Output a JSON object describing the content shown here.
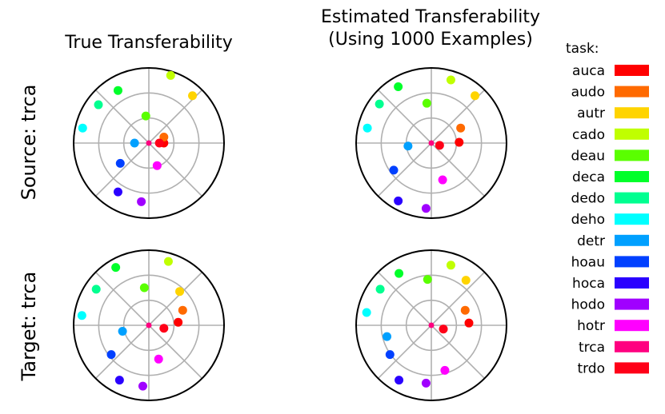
{
  "col_titles": {
    "left": "True Transferability",
    "right_line1": "Estimated Transferability",
    "right_line2": "(Using 1000 Examples)"
  },
  "row_labels": {
    "top": "Source: trca",
    "bottom": "Target: trca"
  },
  "legend": {
    "title": "task:",
    "items": [
      {
        "label": "auca",
        "color": "#ff0000"
      },
      {
        "label": "audo",
        "color": "#ff6a00"
      },
      {
        "label": "autr",
        "color": "#ffd400"
      },
      {
        "label": "cado",
        "color": "#c0ff00"
      },
      {
        "label": "deau",
        "color": "#5aff00"
      },
      {
        "label": "deca",
        "color": "#00ff2a"
      },
      {
        "label": "dedo",
        "color": "#00ff90"
      },
      {
        "label": "deho",
        "color": "#00ffff"
      },
      {
        "label": "detr",
        "color": "#00a0ff"
      },
      {
        "label": "hoau",
        "color": "#0040ff"
      },
      {
        "label": "hoca",
        "color": "#2a00ff"
      },
      {
        "label": "hodo",
        "color": "#a000ff"
      },
      {
        "label": "hotr",
        "color": "#ff00ff"
      },
      {
        "label": "trca",
        "color": "#ff0080"
      },
      {
        "label": "trdo",
        "color": "#ff0018"
      }
    ]
  },
  "chart_data": [
    {
      "type": "scatter",
      "panel": "top-left",
      "points": [
        {
          "task": "auca",
          "x": 0.2,
          "y": 0.0
        },
        {
          "task": "audo",
          "x": 0.2,
          "y": 0.08
        },
        {
          "task": "autr",
          "x": 0.58,
          "y": 0.63
        },
        {
          "task": "cado",
          "x": 0.29,
          "y": 0.9
        },
        {
          "task": "deau",
          "x": -0.04,
          "y": 0.36
        },
        {
          "task": "deca",
          "x": -0.41,
          "y": 0.7
        },
        {
          "task": "dedo",
          "x": -0.67,
          "y": 0.51
        },
        {
          "task": "deho",
          "x": -0.88,
          "y": 0.2
        },
        {
          "task": "detr",
          "x": -0.19,
          "y": 0.0
        },
        {
          "task": "hoau",
          "x": -0.38,
          "y": -0.27
        },
        {
          "task": "hoca",
          "x": -0.41,
          "y": -0.65
        },
        {
          "task": "hodo",
          "x": -0.1,
          "y": -0.78
        },
        {
          "task": "hotr",
          "x": 0.11,
          "y": -0.3
        },
        {
          "task": "trca",
          "x": 0.0,
          "y": 0.0
        },
        {
          "task": "trdo",
          "x": 0.14,
          "y": 0.0
        }
      ]
    },
    {
      "type": "scatter",
      "panel": "top-right",
      "points": [
        {
          "task": "auca",
          "x": 0.37,
          "y": 0.01
        },
        {
          "task": "audo",
          "x": 0.39,
          "y": 0.2
        },
        {
          "task": "autr",
          "x": 0.58,
          "y": 0.63
        },
        {
          "task": "cado",
          "x": 0.26,
          "y": 0.84
        },
        {
          "task": "deau",
          "x": -0.06,
          "y": 0.53
        },
        {
          "task": "deca",
          "x": -0.44,
          "y": 0.75
        },
        {
          "task": "dedo",
          "x": -0.69,
          "y": 0.52
        },
        {
          "task": "deho",
          "x": -0.85,
          "y": 0.2
        },
        {
          "task": "detr",
          "x": -0.31,
          "y": -0.04
        },
        {
          "task": "hoau",
          "x": -0.5,
          "y": -0.36
        },
        {
          "task": "hoca",
          "x": -0.44,
          "y": -0.77
        },
        {
          "task": "hodo",
          "x": -0.07,
          "y": -0.87
        },
        {
          "task": "hotr",
          "x": 0.15,
          "y": -0.49
        },
        {
          "task": "trca",
          "x": 0.0,
          "y": 0.0
        },
        {
          "task": "trdo",
          "x": 0.11,
          "y": -0.03
        }
      ]
    },
    {
      "type": "scatter",
      "panel": "bottom-left",
      "points": [
        {
          "task": "auca",
          "x": 0.39,
          "y": 0.04
        },
        {
          "task": "audo",
          "x": 0.45,
          "y": 0.2
        },
        {
          "task": "autr",
          "x": 0.41,
          "y": 0.45
        },
        {
          "task": "cado",
          "x": 0.26,
          "y": 0.85
        },
        {
          "task": "deau",
          "x": -0.06,
          "y": 0.5
        },
        {
          "task": "deca",
          "x": -0.44,
          "y": 0.77
        },
        {
          "task": "dedo",
          "x": -0.7,
          "y": 0.48
        },
        {
          "task": "deho",
          "x": -0.89,
          "y": 0.13
        },
        {
          "task": "detr",
          "x": -0.35,
          "y": -0.08
        },
        {
          "task": "hoau",
          "x": -0.5,
          "y": -0.39
        },
        {
          "task": "hoca",
          "x": -0.39,
          "y": -0.73
        },
        {
          "task": "hodo",
          "x": -0.08,
          "y": -0.81
        },
        {
          "task": "hotr",
          "x": 0.13,
          "y": -0.45
        },
        {
          "task": "trca",
          "x": 0.0,
          "y": 0.0
        },
        {
          "task": "trdo",
          "x": 0.2,
          "y": -0.04
        }
      ]
    },
    {
      "type": "scatter",
      "panel": "bottom-right",
      "points": [
        {
          "task": "auca",
          "x": 0.5,
          "y": 0.03
        },
        {
          "task": "audo",
          "x": 0.45,
          "y": 0.2
        },
        {
          "task": "autr",
          "x": 0.46,
          "y": 0.6
        },
        {
          "task": "cado",
          "x": 0.26,
          "y": 0.8
        },
        {
          "task": "deau",
          "x": -0.05,
          "y": 0.61
        },
        {
          "task": "deca",
          "x": -0.43,
          "y": 0.69
        },
        {
          "task": "dedo",
          "x": -0.68,
          "y": 0.48
        },
        {
          "task": "deho",
          "x": -0.86,
          "y": 0.17
        },
        {
          "task": "detr",
          "x": -0.59,
          "y": -0.15
        },
        {
          "task": "hoau",
          "x": -0.55,
          "y": -0.39
        },
        {
          "task": "hoca",
          "x": -0.43,
          "y": -0.73
        },
        {
          "task": "hodo",
          "x": -0.07,
          "y": -0.77
        },
        {
          "task": "hotr",
          "x": 0.18,
          "y": -0.6
        },
        {
          "task": "trca",
          "x": 0.0,
          "y": 0.0
        },
        {
          "task": "trdo",
          "x": 0.16,
          "y": -0.05
        }
      ]
    }
  ]
}
